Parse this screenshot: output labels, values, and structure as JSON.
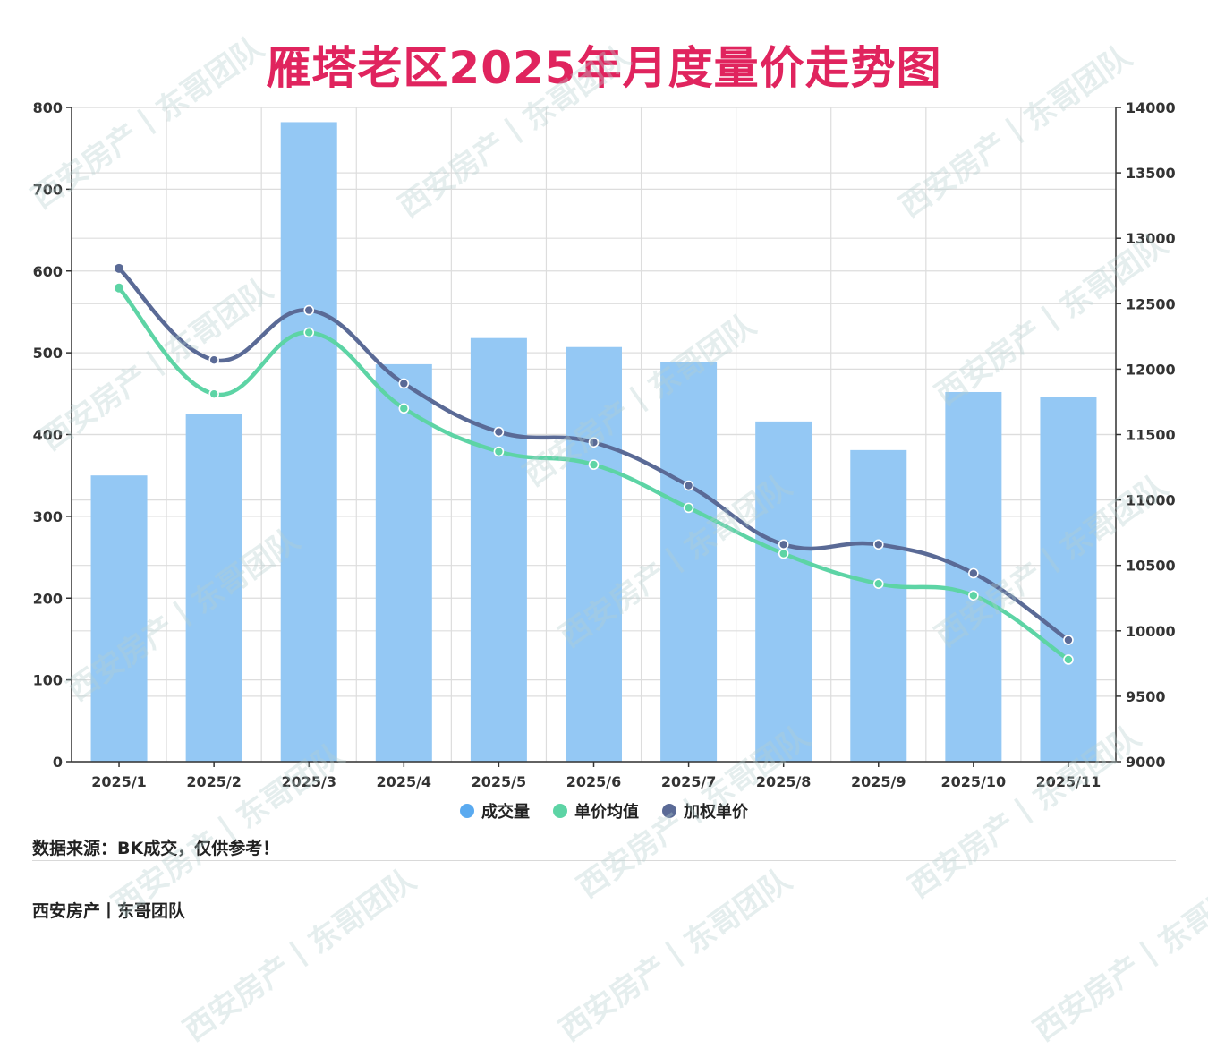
{
  "header": {
    "title": "雁塔老区2025年月度量价走势图"
  },
  "colors": {
    "title": "#e0245e",
    "bar": "#94c8f4",
    "avg_price": "#5dd4a5",
    "weighted_price": "#5a6a96",
    "grid": "#dddddd",
    "axis": "#333333"
  },
  "legend": {
    "items": [
      {
        "label": "成交量",
        "color": "#5aaaf0"
      },
      {
        "label": "单价均值",
        "color": "#5dd4a5"
      },
      {
        "label": "加权单价",
        "color": "#5a6a96"
      }
    ]
  },
  "footer": {
    "source": "数据来源：BK成交，仅供参考！",
    "brand": "西安房产丨东哥团队"
  },
  "watermark": {
    "text": "西安房产丨东哥团队"
  },
  "chart_data": {
    "type": "bar",
    "title": "雁塔老区2025年月度量价走势图",
    "xlabel": "",
    "ylabel": "",
    "categories": [
      "2025/1",
      "2025/2",
      "2025/3",
      "2025/4",
      "2025/5",
      "2025/6",
      "2025/7",
      "2025/8",
      "2025/9",
      "2025/10",
      "2025/11"
    ],
    "series": [
      {
        "name": "成交量",
        "type": "bar",
        "axis": "left",
        "values": [
          350,
          425,
          782,
          486,
          518,
          507,
          489,
          416,
          381,
          452,
          446
        ]
      },
      {
        "name": "单价均值",
        "type": "line",
        "axis": "right",
        "smooth": true,
        "values": [
          12620,
          11810,
          12280,
          11700,
          11370,
          11270,
          10940,
          10590,
          10360,
          10270,
          9780
        ]
      },
      {
        "name": "加权单价",
        "type": "line",
        "axis": "right",
        "smooth": true,
        "values": [
          12770,
          12070,
          12450,
          11890,
          11520,
          11440,
          11110,
          10660,
          10660,
          10440,
          9930
        ]
      }
    ],
    "ylim": [
      0,
      800
    ],
    "yticks": [
      0,
      100,
      200,
      300,
      400,
      500,
      600,
      700,
      800
    ],
    "y2lim": [
      9000,
      14000
    ],
    "y2ticks": [
      9000,
      9500,
      10000,
      10500,
      11000,
      11500,
      12000,
      12500,
      13000,
      13500,
      14000
    ],
    "grid": true,
    "legend_position": "bottom"
  }
}
